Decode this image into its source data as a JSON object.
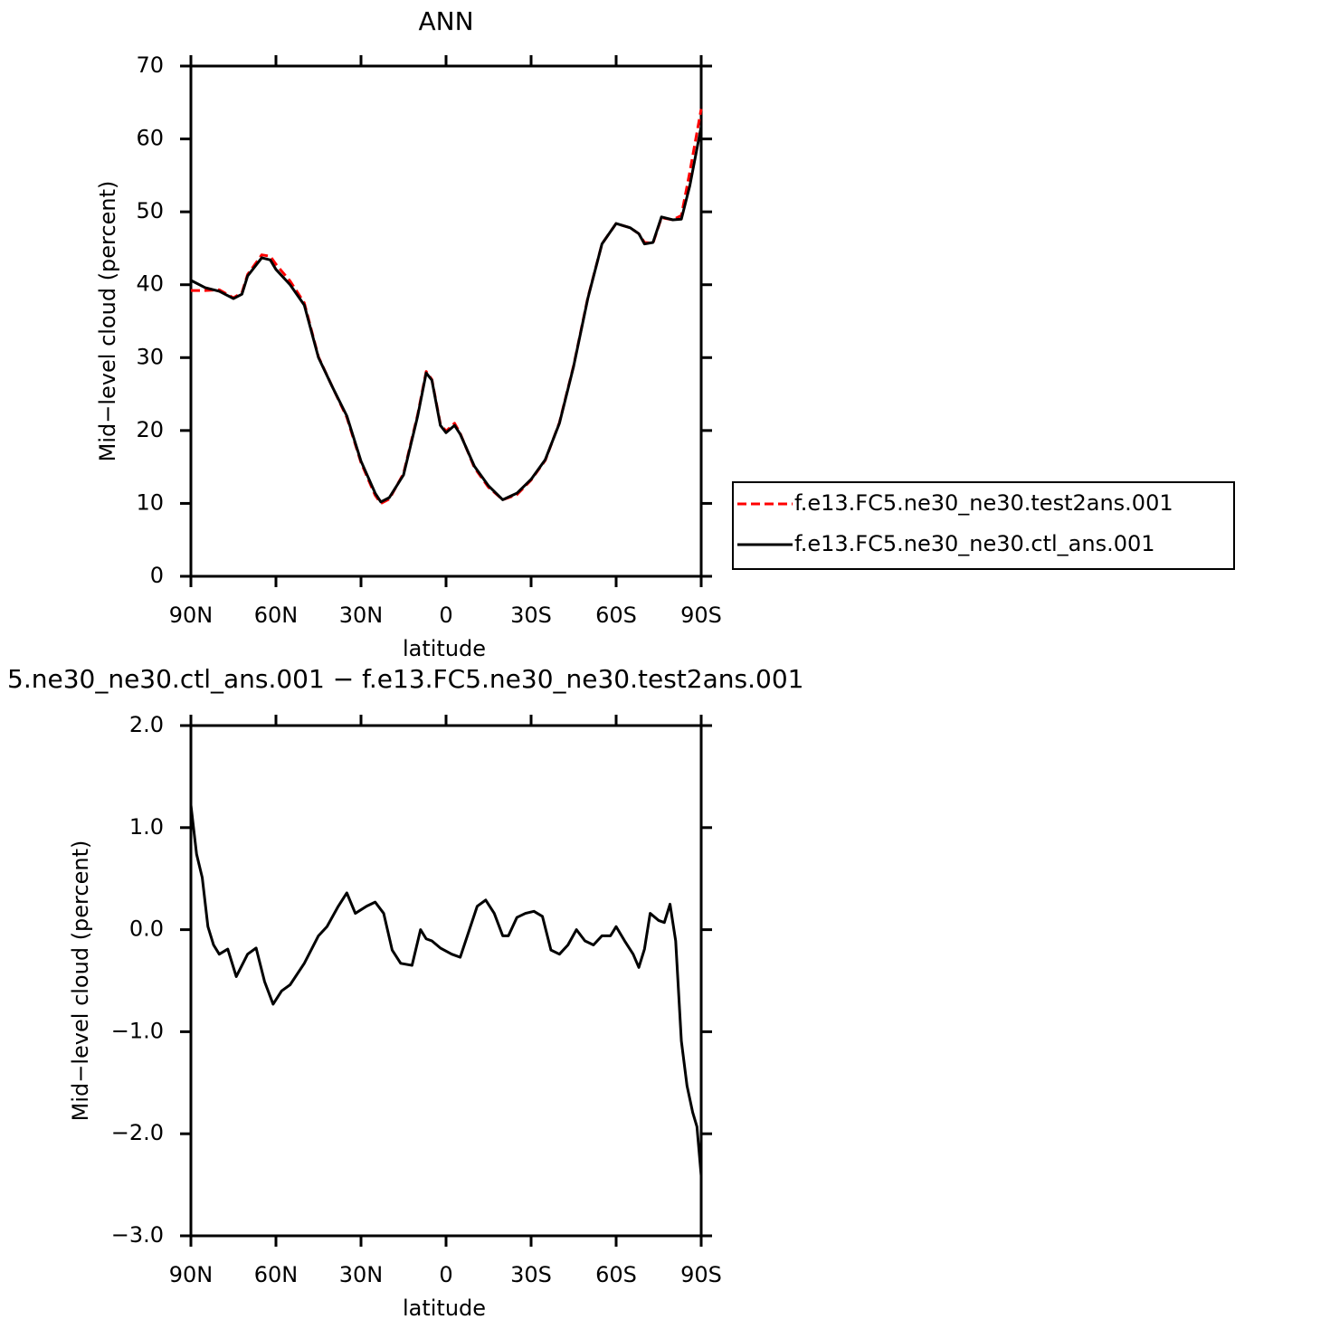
{
  "chart_data": [
    {
      "type": "line",
      "title": "ANN",
      "xlabel": "latitude",
      "ylabel": "Mid−level cloud (percent)",
      "x": [
        90,
        85,
        80,
        75,
        72,
        70,
        65,
        62,
        60,
        55,
        50,
        45,
        40,
        35,
        30,
        25,
        23,
        20,
        15,
        10,
        7,
        5,
        2,
        0,
        -3,
        -5,
        -10,
        -15,
        -20,
        -25,
        -30,
        -35,
        -40,
        -45,
        -50,
        -55,
        -60,
        -65,
        -68,
        -70,
        -73,
        -76,
        -80,
        -83,
        -86,
        -90
      ],
      "series": [
        {
          "name": "f.e13.FC5.ne30_ne30.test2ans.001",
          "color": "#ff0000",
          "dashed": true,
          "values": [
            39.2,
            39.2,
            39.3,
            38.2,
            38.9,
            41.4,
            44.1,
            43.9,
            42.8,
            40.5,
            37.5,
            30.1,
            25.9,
            21.8,
            15.6,
            11.1,
            10.0,
            10.6,
            14.1,
            22.2,
            28.1,
            27.0,
            20.9,
            19.9,
            21.0,
            19.6,
            14.9,
            12.2,
            10.5,
            11.2,
            13.2,
            15.9,
            21.1,
            28.9,
            38.2,
            45.6,
            48.4,
            47.8,
            47.0,
            45.8,
            45.7,
            49.2,
            48.9,
            49.5,
            55.5,
            64.1
          ]
        },
        {
          "name": "f.e13.FC5.ne30_ne30.ctl_ans.001",
          "color": "#000000",
          "dashed": false,
          "values": [
            40.6,
            39.6,
            39.1,
            38.1,
            38.7,
            41.2,
            43.7,
            43.4,
            42.1,
            40.0,
            37.2,
            30.0,
            25.9,
            22.0,
            15.8,
            11.4,
            10.2,
            10.8,
            13.9,
            22.0,
            27.9,
            26.9,
            20.7,
            19.7,
            20.7,
            19.5,
            15.1,
            12.4,
            10.5,
            11.4,
            13.3,
            16.0,
            21.0,
            28.8,
            38.1,
            45.6,
            48.4,
            47.8,
            47.0,
            45.6,
            45.8,
            49.3,
            48.9,
            49.0,
            53.6,
            61.7
          ]
        }
      ],
      "xlim": [
        90,
        -90
      ],
      "xticks": [
        {
          "value": 90,
          "label": "90N"
        },
        {
          "value": 60,
          "label": "60N"
        },
        {
          "value": 30,
          "label": "30N"
        },
        0,
        {
          "value": -30,
          "label": "30S"
        },
        {
          "value": -60,
          "label": "60S"
        },
        {
          "value": -90,
          "label": "90S"
        }
      ],
      "ylim": [
        0,
        70
      ],
      "yticks": [
        0,
        10,
        20,
        30,
        40,
        50,
        60,
        70
      ],
      "legend": "outside-right"
    },
    {
      "type": "line",
      "title": "5.ne30_ne30.ctl_ans.001 − f.e13.FC5.ne30_ne30.test2ans.001",
      "xlabel": "latitude",
      "ylabel": "Mid−level cloud (percent)",
      "x": [
        90,
        88,
        86,
        84,
        82,
        80,
        77,
        74,
        70,
        67,
        64,
        61,
        58,
        55,
        50,
        45,
        42,
        38,
        35,
        32,
        28,
        25,
        22,
        19,
        16,
        12,
        9,
        7,
        5,
        2,
        -2,
        -5,
        -8,
        -11,
        -14,
        -17,
        -20,
        -22,
        -25,
        -28,
        -31,
        -34,
        -37,
        -40,
        -43,
        -46,
        -49,
        -52,
        -55,
        -58,
        -60,
        -63,
        -66,
        -68,
        -70,
        -72,
        -75,
        -77,
        -79,
        -81,
        -83,
        -85,
        -87,
        -88.5,
        -90
      ],
      "values": [
        1.22,
        0.74,
        0.51,
        0.03,
        -0.15,
        -0.24,
        -0.19,
        -0.46,
        -0.24,
        -0.18,
        -0.51,
        -0.73,
        -0.6,
        -0.54,
        -0.33,
        -0.06,
        0.03,
        0.23,
        0.36,
        0.16,
        0.23,
        0.27,
        0.16,
        -0.2,
        -0.33,
        -0.35,
        0,
        -0.09,
        -0.11,
        -0.18,
        -0.24,
        -0.27,
        -0.02,
        0.23,
        0.29,
        0.16,
        -0.06,
        -0.06,
        0.12,
        0.16,
        0.18,
        0.13,
        -0.2,
        -0.24,
        -0.15,
        0,
        -0.11,
        -0.15,
        -0.06,
        -0.06,
        0.03,
        -0.11,
        -0.24,
        -0.37,
        -0.19,
        0.16,
        0.09,
        0.07,
        0.25,
        -0.11,
        -1.09,
        -1.53,
        -1.79,
        -1.93,
        -2.41
      ],
      "color": "#000000",
      "xlim": [
        90,
        -90
      ],
      "xticks": [
        {
          "value": 90,
          "label": "90N"
        },
        {
          "value": 60,
          "label": "60N"
        },
        {
          "value": 30,
          "label": "30N"
        },
        0,
        {
          "value": -30,
          "label": "30S"
        },
        {
          "value": -60,
          "label": "60S"
        },
        {
          "value": -90,
          "label": "90S"
        }
      ],
      "ylim": [
        -3,
        2
      ],
      "yticks": [
        {
          "value": -3,
          "label": "−3.0"
        },
        {
          "value": -2,
          "label": "−2.0"
        },
        {
          "value": -1,
          "label": "−1.0"
        },
        {
          "value": 0,
          "label": "0.0"
        },
        {
          "value": 1,
          "label": "1.0"
        },
        {
          "value": 2,
          "label": "2.0"
        }
      ]
    }
  ]
}
